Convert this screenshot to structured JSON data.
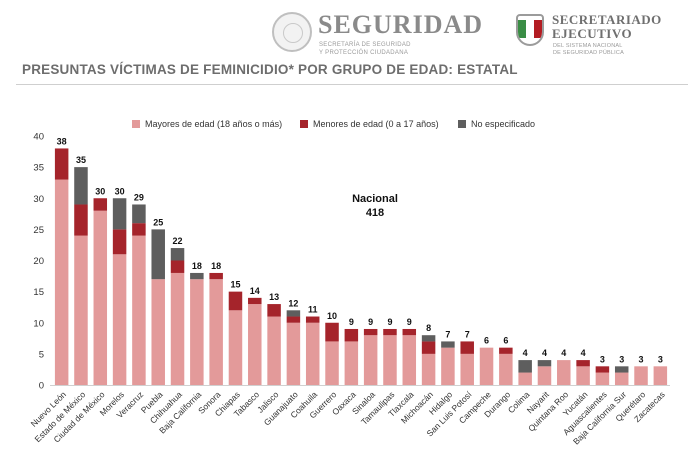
{
  "header": {
    "logo_left": {
      "title": "SEGURIDAD",
      "subtitle_line1": "SECRETARÍA DE SEGURIDAD",
      "subtitle_line2": "Y PROTECCIÓN CIUDADANA"
    },
    "logo_right": {
      "title_line1": "SECRETARIADO",
      "title_line2": "EJECUTIVO",
      "subtitle_line1": "DEL SISTEMA NACIONAL",
      "subtitle_line2": "DE SEGURIDAD PÚBLICA"
    }
  },
  "page_title": "PRESUNTAS VÍCTIMAS DE FEMINICIDIO* POR GRUPO DE EDAD: ESTATAL",
  "annotation": {
    "line1": "Nacional",
    "line2": "418"
  },
  "colors": {
    "mayores": "#e39a9a",
    "menores": "#a5242b",
    "no_especificado": "#5e5e5e",
    "title": "#6d6d6d"
  },
  "chart_data": {
    "type": "bar",
    "stacked": true,
    "ylim": [
      0,
      40
    ],
    "yticks": [
      0,
      5,
      10,
      15,
      20,
      25,
      30,
      35,
      40
    ],
    "legend_position": "top",
    "grid": false,
    "categories": [
      "Nuevo León",
      "Estado de México",
      "Ciudad de México",
      "Morelos",
      "Veracruz",
      "Puebla",
      "Chihuahua",
      "Baja California",
      "Sonora",
      "Chiapas",
      "Tabasco",
      "Jalisco",
      "Guanajuato",
      "Coahuila",
      "Guerrero",
      "Oaxaca",
      "Sinaloa",
      "Tamaulipas",
      "Tlaxcala",
      "Michoacán",
      "Hidalgo",
      "San Luis Potosí",
      "Campeche",
      "Durango",
      "Colima",
      "Nayarit",
      "Quintana Roo",
      "Yucatán",
      "Aguascalientes",
      "Baja California Sur",
      "Querétaro",
      "Zacatecas"
    ],
    "totals": [
      38,
      35,
      30,
      30,
      29,
      25,
      22,
      18,
      18,
      15,
      14,
      13,
      12,
      11,
      10,
      9,
      9,
      9,
      9,
      8,
      7,
      7,
      6,
      6,
      4,
      4,
      4,
      4,
      3,
      3,
      3,
      3
    ],
    "series": [
      {
        "name": "Mayores de edad (18 años o más)",
        "values": [
          33,
          24,
          28,
          21,
          24,
          17,
          18,
          17,
          17,
          12,
          13,
          11,
          10,
          10,
          7,
          7,
          8,
          8,
          8,
          5,
          6,
          5,
          6,
          5,
          2,
          3,
          4,
          3,
          2,
          2,
          3,
          3
        ]
      },
      {
        "name": "Menores de edad (0 a 17 años)",
        "values": [
          5,
          5,
          2,
          4,
          2,
          0,
          2,
          0,
          1,
          3,
          1,
          2,
          1,
          1,
          3,
          2,
          1,
          1,
          1,
          2,
          0,
          2,
          0,
          1,
          0,
          0,
          0,
          1,
          1,
          0,
          0,
          0
        ]
      },
      {
        "name": "No especificado",
        "values": [
          0,
          6,
          0,
          5,
          3,
          8,
          2,
          1,
          0,
          0,
          0,
          0,
          1,
          0,
          0,
          0,
          0,
          0,
          0,
          1,
          1,
          0,
          0,
          0,
          2,
          1,
          0,
          0,
          0,
          1,
          0,
          0
        ]
      }
    ]
  }
}
